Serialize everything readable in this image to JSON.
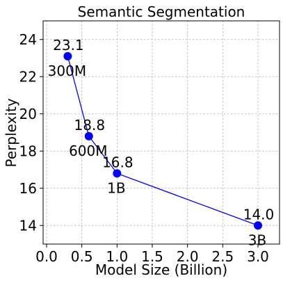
{
  "chart_data": {
    "type": "line",
    "title": "Semantic Segmentation",
    "xlabel": "Model Size (Billion)",
    "ylabel": "Perplexity",
    "xlim": [
      0.0,
      3.3
    ],
    "ylim": [
      13.0,
      25.0
    ],
    "xticks": [
      "0.0",
      "0.5",
      "1.0",
      "1.5",
      "2.0",
      "2.5",
      "3.0"
    ],
    "yticks": [
      "14",
      "16",
      "18",
      "20",
      "22",
      "24"
    ],
    "grid": true,
    "colors": {
      "line": "#0000ff",
      "marker": "#0000ff"
    },
    "series": [
      {
        "x": [
          0.3,
          0.6,
          1.0,
          3.0
        ],
        "values": [
          23.1,
          18.8,
          16.8,
          14.0
        ],
        "value_labels": [
          "23.1",
          "18.8",
          "16.8",
          "14.0"
        ],
        "size_labels": [
          "300M",
          "600M",
          "1B",
          "3B"
        ]
      }
    ]
  }
}
